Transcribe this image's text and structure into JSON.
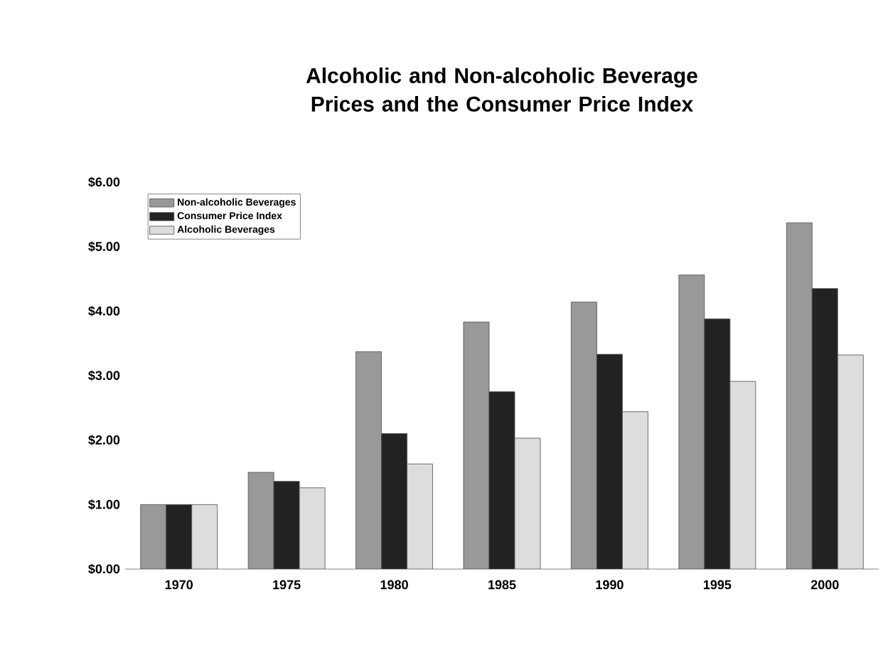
{
  "chart_data": {
    "type": "bar",
    "title": "Alcoholic and Non-alcoholic Beverage Prices and the Consumer Price Index",
    "categories": [
      "1970",
      "1975",
      "1980",
      "1985",
      "1990",
      "1995",
      "2000"
    ],
    "series": [
      {
        "name": "Non-alcoholic Beverages",
        "color": "#999999",
        "values": [
          1.0,
          1.5,
          3.37,
          3.83,
          4.14,
          4.56,
          5.37
        ]
      },
      {
        "name": "Consumer Price Index",
        "color": "#222222",
        "values": [
          1.0,
          1.36,
          2.1,
          2.75,
          3.33,
          3.88,
          4.35
        ]
      },
      {
        "name": "Alcoholic Beverages",
        "color": "#dddddd",
        "values": [
          1.0,
          1.26,
          1.63,
          2.03,
          2.44,
          2.91,
          3.32
        ]
      }
    ],
    "ylim": [
      0,
      6
    ],
    "yticks": [
      {
        "value": 0,
        "label": "$0.00"
      },
      {
        "value": 1,
        "label": "$1.00"
      },
      {
        "value": 2,
        "label": "$2.00"
      },
      {
        "value": 3,
        "label": "$3.00"
      },
      {
        "value": 4,
        "label": "$4.00"
      },
      {
        "value": 5,
        "label": "$5.00"
      },
      {
        "value": 6,
        "label": "$6.00"
      }
    ],
    "legend": "top left",
    "grid": false
  }
}
